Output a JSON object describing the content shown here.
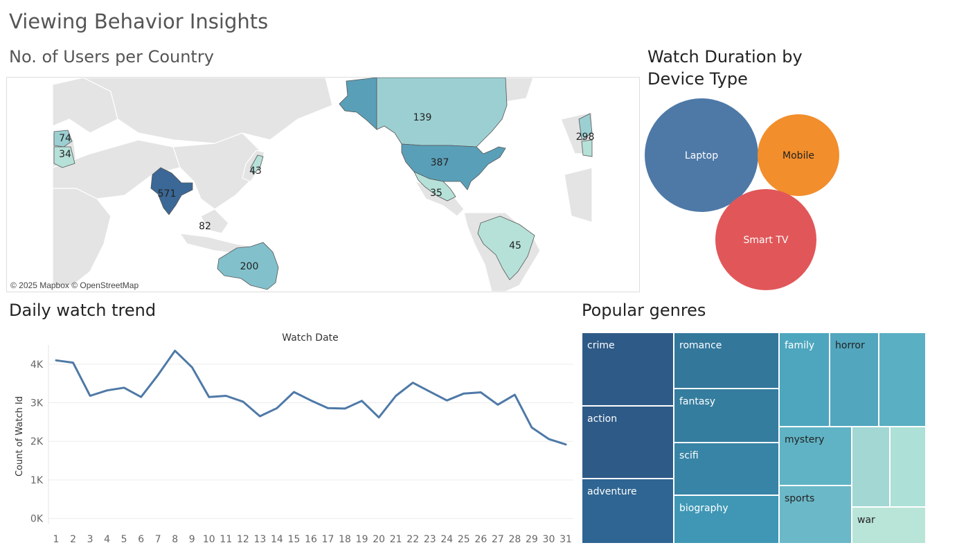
{
  "dashboard": {
    "title": "Viewing Behavior Insights"
  },
  "map": {
    "title": "No. of Users per Country",
    "attribution": "© 2025 Mapbox © OpenStreetMap",
    "labels": [
      "571",
      "387",
      "200",
      "139",
      "82",
      "45",
      "43",
      "35",
      "34",
      "74",
      "298"
    ],
    "colors": {
      "land": "#e4e4e4",
      "border": "#ffffff",
      "ocean": "#ffffff"
    }
  },
  "chart_data": [
    {
      "type": "bubble",
      "title": "Watch Duration by Device Type",
      "categories": [
        "Laptop",
        "Mobile",
        "Smart TV"
      ],
      "colors": [
        "#4e79a7",
        "#f28e2b",
        "#e15759"
      ],
      "relative_size": [
        1.0,
        0.5,
        0.8
      ]
    },
    {
      "type": "line",
      "title": "Daily watch trend",
      "xlabel": "Watch Date",
      "ylabel": "Count of Watch Id",
      "x": [
        1,
        2,
        3,
        4,
        5,
        6,
        7,
        8,
        9,
        10,
        11,
        12,
        13,
        14,
        15,
        16,
        17,
        18,
        19,
        20,
        21,
        22,
        23,
        24,
        25,
        26,
        27,
        28,
        29,
        30,
        31
      ],
      "y": [
        4100,
        4040,
        3180,
        3320,
        3390,
        3150,
        3720,
        4350,
        3920,
        3150,
        3180,
        3030,
        2650,
        2860,
        3280,
        3060,
        2860,
        2850,
        3050,
        2620,
        3180,
        3520,
        3290,
        3060,
        3240,
        3270,
        2950,
        3210,
        2360,
        2060,
        1920
      ],
      "yticks": [
        "0K",
        "1K",
        "2K",
        "3K",
        "4K"
      ],
      "ylim": [
        -150,
        4500
      ],
      "color": "#4e79a7",
      "grid": true
    },
    {
      "type": "treemap",
      "title": "Popular genres",
      "labels": [
        "crime",
        "action",
        "adventure",
        "romance",
        "fantasy",
        "scifi",
        "biography",
        "family",
        "horror",
        "",
        "mystery",
        "sports",
        "",
        "",
        "war"
      ]
    }
  ],
  "device": {
    "title": "Watch Duration by Device Type",
    "labels": [
      "Laptop",
      "Mobile",
      "Smart TV"
    ]
  },
  "trend": {
    "title": "Daily watch trend",
    "xlabel": "Watch Date",
    "ylabel": "Count of Watch Id"
  },
  "genres": {
    "title": "Popular genres",
    "cells": [
      {
        "label": "crime",
        "color": "#2e5a87",
        "text": "#ffffff"
      },
      {
        "label": "action",
        "color": "#2e5a87",
        "text": "#ffffff"
      },
      {
        "label": "adventure",
        "color": "#2f6592",
        "text": "#ffffff"
      },
      {
        "label": "romance",
        "color": "#33779b",
        "text": "#ffffff"
      },
      {
        "label": "fantasy",
        "color": "#357d9e",
        "text": "#ffffff"
      },
      {
        "label": "scifi",
        "color": "#3884a6",
        "text": "#ffffff"
      },
      {
        "label": "biography",
        "color": "#3f97b5",
        "text": "#ffffff"
      },
      {
        "label": "family",
        "color": "#4da6be",
        "text": "#ffffff"
      },
      {
        "label": "horror",
        "color": "#52a6bd",
        "text": "#222222"
      },
      {
        "label": "",
        "color": "#5aafc2",
        "text": "#222222"
      },
      {
        "label": "mystery",
        "color": "#5fb3c4",
        "text": "#222222"
      },
      {
        "label": "sports",
        "color": "#6bb8c8",
        "text": "#222222"
      },
      {
        "label": "",
        "color": "#a2d7d4",
        "text": "#222222"
      },
      {
        "label": "",
        "color": "#ade0d6",
        "text": "#222222"
      },
      {
        "label": "war",
        "color": "#b9e4d8",
        "text": "#222222"
      }
    ]
  }
}
